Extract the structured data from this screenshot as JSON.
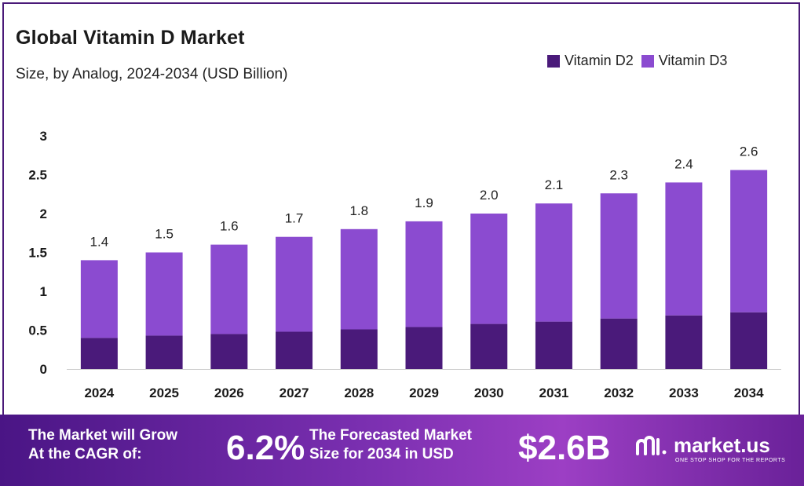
{
  "header": {
    "title": "Global Vitamin D Market",
    "subtitle": "Size, by Analog, 2024-2034 (USD Billion)"
  },
  "legend": [
    {
      "label": "Vitamin D2",
      "color": "#4a1a7a"
    },
    {
      "label": "Vitamin D3",
      "color": "#8b4bd0"
    }
  ],
  "chart_data": {
    "type": "bar",
    "stacked": true,
    "categories": [
      "2024",
      "2025",
      "2026",
      "2027",
      "2028",
      "2029",
      "2030",
      "2031",
      "2032",
      "2033",
      "2034"
    ],
    "series": [
      {
        "name": "Vitamin D2",
        "color": "#4a1a7a",
        "values": [
          0.4,
          0.43,
          0.45,
          0.48,
          0.51,
          0.54,
          0.58,
          0.61,
          0.65,
          0.69,
          0.73
        ]
      },
      {
        "name": "Vitamin D3",
        "color": "#8b4bd0",
        "values": [
          1.0,
          1.07,
          1.15,
          1.22,
          1.29,
          1.36,
          1.42,
          1.52,
          1.61,
          1.71,
          1.83
        ]
      }
    ],
    "totals_labels": [
      "1.4",
      "1.5",
      "1.6",
      "1.7",
      "1.8",
      "1.9",
      "2.0",
      "2.1",
      "2.3",
      "2.4",
      "2.6"
    ],
    "y_ticks": [
      "0",
      "0.5",
      "1",
      "1.5",
      "2",
      "2.5",
      "3"
    ],
    "ylim": [
      0,
      3
    ],
    "grid": false,
    "legend_position": "top-right",
    "title": "Global Vitamin D Market",
    "xlabel": "",
    "ylabel": ""
  },
  "banner": {
    "cagr_label_line1": "The Market will Grow",
    "cagr_label_line2": "At the CAGR of:",
    "cagr_value": "6.2%",
    "forecast_label_line1": "The Forecasted Market",
    "forecast_label_line2": "Size for 2034 in USD",
    "forecast_value": "$2.6B",
    "brand_name": "market.us",
    "brand_tagline": "ONE STOP SHOP FOR THE REPORTS"
  }
}
